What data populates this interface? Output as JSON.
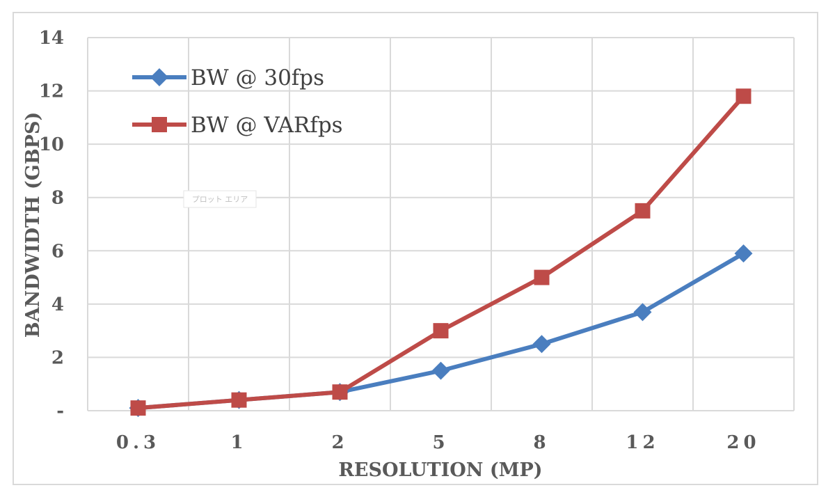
{
  "chart_data": {
    "type": "line",
    "title": "",
    "xlabel": "RESOLUTION (MP)",
    "ylabel": "BANDWIDTH (GBPS)",
    "categories": [
      "0.3",
      "1",
      "2",
      "5",
      "8",
      "12",
      "20"
    ],
    "ylim": [
      0,
      14
    ],
    "y_ticks": [
      {
        "value": 0,
        "label": "-"
      },
      {
        "value": 2,
        "label": "2"
      },
      {
        "value": 4,
        "label": "4"
      },
      {
        "value": 6,
        "label": "6"
      },
      {
        "value": 8,
        "label": "8"
      },
      {
        "value": 10,
        "label": "10"
      },
      {
        "value": 12,
        "label": "12"
      },
      {
        "value": 14,
        "label": "14"
      }
    ],
    "grid": true,
    "legend_position": "top-left",
    "series": [
      {
        "name": "BW @ 30fps",
        "marker": "diamond",
        "color": "#4a7ebf",
        "values": [
          0.1,
          0.4,
          0.7,
          1.5,
          2.5,
          3.7,
          5.9
        ]
      },
      {
        "name": "BW @ VARfps",
        "marker": "square",
        "color": "#be4b48",
        "values": [
          0.1,
          0.4,
          0.7,
          3.0,
          5.0,
          7.5,
          11.8
        ]
      }
    ],
    "watermark": "プロット エリア"
  }
}
